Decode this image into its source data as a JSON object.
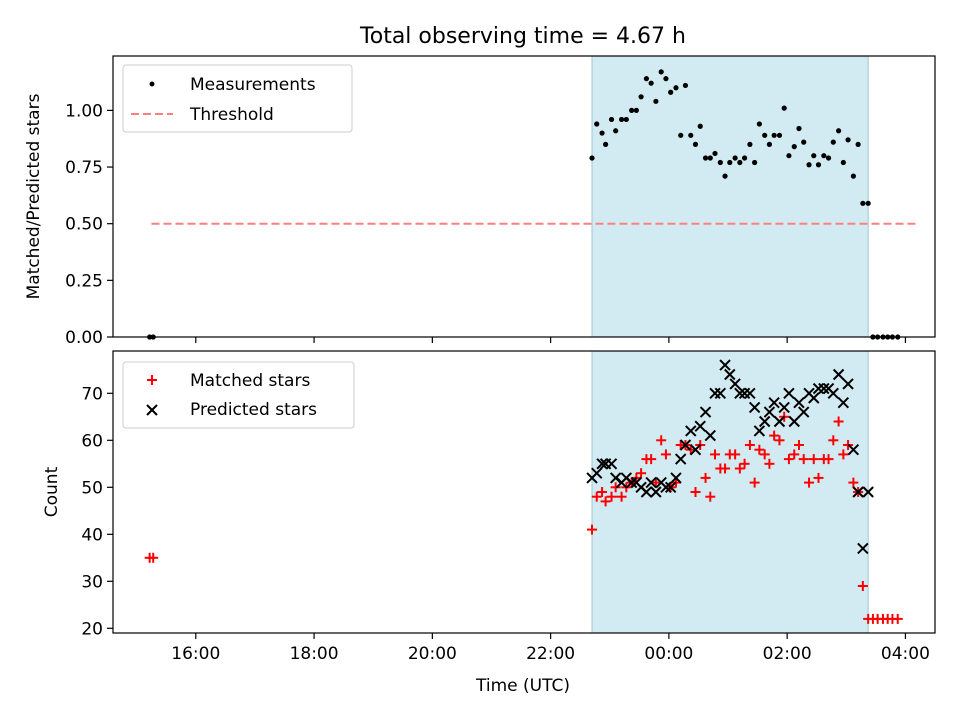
{
  "figure": {
    "title": "Total observing time = 4.67 h",
    "xlabel": "Time (UTC)",
    "x_ticks": [
      "16:00",
      "18:00",
      "20:00",
      "22:00",
      "00:00",
      "02:00",
      "04:00"
    ],
    "x_tick_hours": [
      16,
      18,
      20,
      22,
      24,
      26,
      28
    ],
    "xlim_hours": [
      14.6,
      28.5
    ],
    "observing_window_hours": [
      22.7,
      27.37
    ],
    "colors": {
      "window": "#add8e6",
      "threshold": "#ff7f7f",
      "matched": "#ff0000",
      "predicted": "#000000",
      "measurements": "#000000"
    }
  },
  "chart_data": [
    {
      "type": "scatter",
      "panel": "top",
      "ylabel": "Matched/Predicted stars",
      "ylim": [
        0,
        1.24
      ],
      "y_ticks": [
        0.0,
        0.25,
        0.5,
        0.75,
        1.0
      ],
      "y_tick_labels": [
        "0.00",
        "0.25",
        "0.50",
        "0.75",
        "1.00"
      ],
      "legend": {
        "position": "top-left",
        "entries": [
          {
            "label": "Measurements",
            "marker": "dot",
            "color": "#000000"
          },
          {
            "label": "Threshold",
            "marker": "dashed-line",
            "color": "#ff7f7f"
          }
        ]
      },
      "threshold": {
        "name": "Threshold",
        "y": 0.5,
        "x_range": [
          15.25,
          28.2
        ]
      },
      "series": [
        {
          "name": "Measurements",
          "x": [
            15.22,
            15.28,
            22.7,
            22.78,
            22.87,
            22.93,
            23.03,
            23.1,
            23.2,
            23.28,
            23.37,
            23.45,
            23.53,
            23.62,
            23.7,
            23.78,
            23.87,
            23.95,
            24.03,
            24.12,
            24.2,
            24.28,
            24.37,
            24.45,
            24.53,
            24.62,
            24.7,
            24.78,
            24.87,
            24.95,
            25.03,
            25.12,
            25.2,
            25.28,
            25.37,
            25.45,
            25.53,
            25.62,
            25.7,
            25.78,
            25.87,
            25.95,
            26.03,
            26.12,
            26.2,
            26.28,
            26.37,
            26.45,
            26.53,
            26.62,
            26.7,
            26.78,
            26.87,
            26.95,
            27.03,
            27.12,
            27.2,
            27.28,
            27.37,
            27.45,
            27.53,
            27.62,
            27.7,
            27.78,
            27.87
          ],
          "y": [
            0.0,
            0.0,
            0.79,
            0.94,
            0.9,
            0.85,
            0.96,
            0.91,
            0.96,
            0.96,
            1.0,
            1.0,
            1.06,
            1.14,
            1.12,
            1.04,
            1.17,
            1.14,
            1.08,
            1.1,
            0.89,
            1.11,
            0.89,
            0.85,
            0.93,
            0.79,
            0.79,
            0.81,
            0.77,
            0.71,
            0.77,
            0.79,
            0.77,
            0.79,
            0.85,
            0.77,
            0.94,
            0.89,
            0.85,
            0.89,
            0.89,
            1.01,
            0.8,
            0.84,
            0.92,
            0.86,
            0.76,
            0.8,
            0.76,
            0.8,
            0.79,
            0.86,
            0.91,
            0.77,
            0.87,
            0.71,
            0.85,
            0.59,
            0.59,
            0.0,
            0.0,
            0.0,
            0.0,
            0.0,
            0.0
          ]
        }
      ]
    },
    {
      "type": "scatter",
      "panel": "bottom",
      "ylabel": "Count",
      "ylim": [
        19,
        79
      ],
      "y_ticks": [
        20,
        30,
        40,
        50,
        60,
        70
      ],
      "y_tick_labels": [
        "20",
        "30",
        "40",
        "50",
        "60",
        "70"
      ],
      "legend": {
        "position": "top-left",
        "entries": [
          {
            "label": "Matched stars",
            "marker": "plus",
            "color": "#ff0000"
          },
          {
            "label": "Predicted stars",
            "marker": "x",
            "color": "#000000"
          }
        ]
      },
      "series": [
        {
          "name": "Matched stars",
          "x": [
            15.22,
            15.28,
            22.7,
            22.78,
            22.87,
            22.93,
            23.03,
            23.1,
            23.2,
            23.28,
            23.37,
            23.45,
            23.53,
            23.62,
            23.7,
            23.78,
            23.87,
            23.95,
            24.03,
            24.12,
            24.2,
            24.28,
            24.37,
            24.45,
            24.53,
            24.62,
            24.7,
            24.78,
            24.87,
            24.95,
            25.03,
            25.12,
            25.2,
            25.28,
            25.37,
            25.45,
            25.53,
            25.62,
            25.7,
            25.78,
            25.87,
            25.95,
            26.03,
            26.12,
            26.2,
            26.28,
            26.37,
            26.45,
            26.53,
            26.62,
            26.7,
            26.78,
            26.87,
            26.95,
            27.03,
            27.12,
            27.2,
            27.28,
            27.37,
            27.45,
            27.53,
            27.62,
            27.7,
            27.78,
            27.87
          ],
          "y": [
            35,
            35,
            41,
            48,
            49,
            47,
            48,
            50,
            48,
            50,
            51,
            52,
            53,
            56,
            56,
            51,
            60,
            57,
            50,
            51,
            59,
            59,
            58,
            49,
            59,
            52,
            48,
            57,
            54,
            54,
            57,
            57,
            54,
            55,
            59,
            51,
            58,
            57,
            55,
            61,
            60,
            65,
            56,
            57,
            59,
            56,
            51,
            56,
            52,
            56,
            56,
            60,
            64,
            57,
            59,
            51,
            49,
            29,
            22,
            22,
            22,
            22,
            22,
            22,
            22
          ]
        },
        {
          "name": "Predicted stars",
          "x": [
            22.7,
            22.78,
            22.87,
            22.93,
            23.03,
            23.1,
            23.2,
            23.28,
            23.37,
            23.45,
            23.53,
            23.62,
            23.7,
            23.78,
            23.87,
            23.95,
            24.03,
            24.12,
            24.2,
            24.28,
            24.37,
            24.45,
            24.53,
            24.62,
            24.7,
            24.78,
            24.87,
            24.95,
            25.03,
            25.12,
            25.2,
            25.28,
            25.37,
            25.45,
            25.53,
            25.62,
            25.7,
            25.78,
            25.87,
            25.95,
            26.03,
            26.12,
            26.2,
            26.28,
            26.37,
            26.45,
            26.53,
            26.62,
            26.7,
            26.78,
            26.87,
            26.95,
            27.03,
            27.12,
            27.2,
            27.28,
            27.37
          ],
          "y": [
            52,
            53,
            55,
            55,
            55,
            52,
            51,
            52,
            51,
            51,
            50,
            49,
            51,
            49,
            51,
            50,
            50,
            52,
            56,
            59,
            62,
            58,
            63,
            66,
            61,
            70,
            70,
            76,
            74,
            72,
            70,
            70,
            70,
            67,
            62,
            64,
            66,
            68,
            64,
            67,
            70,
            64,
            68,
            66,
            70,
            69,
            71,
            71,
            71,
            70,
            74,
            68,
            72,
            58,
            49,
            37,
            49
          ]
        }
      ]
    }
  ]
}
